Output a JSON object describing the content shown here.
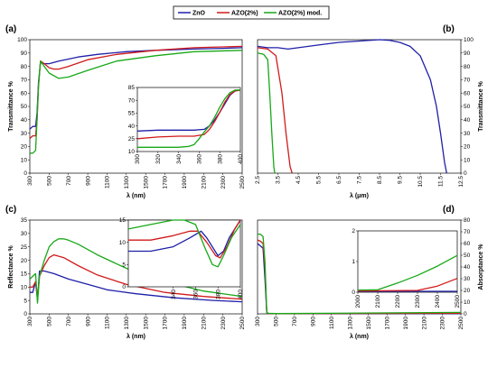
{
  "legend": [
    {
      "name": "ZnO",
      "color": "#1f1fa8"
    },
    {
      "name": "AZO(2%)",
      "color": "#d11a1a"
    },
    {
      "name": "AZO(2%) mod.",
      "color": "#17a817"
    }
  ],
  "chart_data": [
    {
      "panel": "(a)",
      "type": "line",
      "xlabel": "λ (nm)",
      "ylabel": "Transmittance %",
      "xlim": [
        300,
        2500
      ],
      "ylim": [
        0,
        100
      ],
      "xticks": [
        "300",
        "500",
        "700",
        "900",
        "1100",
        "1300",
        "1500",
        "1700",
        "1900",
        "2100",
        "2300",
        "2500"
      ],
      "yticks": [
        "0",
        "10",
        "20",
        "30",
        "40",
        "50",
        "60",
        "70",
        "80",
        "90",
        "100"
      ],
      "series": [
        {
          "name": "ZnO",
          "x": [
            300,
            330,
            360,
            375,
            390,
            410,
            450,
            500,
            600,
            800,
            1000,
            1300,
            1600,
            2000,
            2300,
            2500
          ],
          "y": [
            33,
            35,
            35,
            45,
            68,
            83,
            82,
            82,
            84,
            87,
            89,
            91,
            92,
            93,
            93.5,
            94
          ]
        },
        {
          "name": "AZO(2%)",
          "x": [
            300,
            330,
            360,
            375,
            390,
            410,
            450,
            500,
            550,
            600,
            700,
            900,
            1200,
            1600,
            2000,
            2500
          ],
          "y": [
            26,
            28,
            28,
            40,
            65,
            84,
            82,
            79,
            78,
            78,
            80,
            85,
            89,
            92,
            94,
            95
          ]
        },
        {
          "name": "AZO(2%) mod.",
          "x": [
            300,
            330,
            360,
            375,
            390,
            410,
            450,
            500,
            600,
            700,
            900,
            1200,
            1600,
            2000,
            2500
          ],
          "y": [
            15,
            15,
            17,
            40,
            65,
            84,
            80,
            75,
            71,
            72,
            77,
            84,
            88,
            91,
            92
          ]
        }
      ]
    },
    {
      "panel": "(a) inset",
      "type": "line",
      "xlim": [
        300,
        400
      ],
      "ylim": [
        10,
        85
      ],
      "xticks": [
        "300",
        "320",
        "340",
        "360",
        "380",
        "400"
      ],
      "yticks": [
        "10",
        "25",
        "40",
        "55",
        "70",
        "85"
      ],
      "series": [
        {
          "name": "ZnO",
          "x": [
            300,
            320,
            340,
            355,
            365,
            370,
            375,
            380,
            385,
            390,
            395,
            400
          ],
          "y": [
            34,
            35,
            35,
            35,
            36,
            40,
            47,
            56,
            66,
            76,
            81,
            82
          ]
        },
        {
          "name": "AZO(2%)",
          "x": [
            300,
            320,
            340,
            355,
            365,
            370,
            375,
            380,
            385,
            390,
            395,
            400
          ],
          "y": [
            25,
            27,
            28,
            28,
            30,
            36,
            45,
            56,
            68,
            77,
            81,
            82
          ]
        },
        {
          "name": "AZO(2%) mod.",
          "x": [
            300,
            320,
            340,
            350,
            355,
            360,
            365,
            370,
            375,
            380,
            385,
            390,
            395,
            400
          ],
          "y": [
            15,
            15,
            15,
            16,
            18,
            25,
            33,
            40,
            50,
            62,
            72,
            79,
            82,
            82
          ]
        }
      ]
    },
    {
      "panel": "(b)",
      "type": "line",
      "xlabel": "λ (μm)",
      "ylabel": "Transmittance %",
      "xlim": [
        2.5,
        12.5
      ],
      "ylim": [
        0,
        100
      ],
      "xticks": [
        "2.5",
        "3.5",
        "4.5",
        "5.5",
        "6.5",
        "7.5",
        "8.5",
        "9.5",
        "10.5",
        "11.5",
        "12.5"
      ],
      "yticks": [
        "0",
        "10",
        "20",
        "30",
        "40",
        "50",
        "60",
        "70",
        "80",
        "90",
        "100"
      ],
      "series": [
        {
          "name": "ZnO",
          "x": [
            2.5,
            3.0,
            3.5,
            4.0,
            4.5,
            5.5,
            6.5,
            7.5,
            8.5,
            9.0,
            9.5,
            10.0,
            10.5,
            11.0,
            11.3,
            11.5,
            11.7,
            11.8
          ],
          "y": [
            95,
            94,
            94,
            93,
            94,
            96,
            98,
            99,
            100,
            99.5,
            98,
            95,
            88,
            70,
            50,
            30,
            8,
            0
          ]
        },
        {
          "name": "AZO(2%)",
          "x": [
            2.5,
            3.0,
            3.4,
            3.7,
            3.9,
            4.1,
            4.2
          ],
          "y": [
            94,
            93,
            88,
            60,
            30,
            5,
            0
          ]
        },
        {
          "name": "AZO(2%) mod.",
          "x": [
            2.5,
            2.8,
            3.0,
            3.1,
            3.2,
            3.3,
            3.35
          ],
          "y": [
            90,
            89,
            85,
            60,
            30,
            5,
            0
          ]
        }
      ]
    },
    {
      "panel": "(c)",
      "type": "line",
      "xlabel": "λ (nm)",
      "ylabel": "Reflectance %",
      "xlim": [
        300,
        2500
      ],
      "ylim": [
        0,
        35
      ],
      "xticks": [
        "300",
        "500",
        "700",
        "900",
        "1100",
        "1300",
        "1500",
        "1700",
        "1900",
        "2100",
        "2300",
        "2500"
      ],
      "yticks": [
        "0",
        "5",
        "10",
        "15",
        "20",
        "25",
        "30",
        "35"
      ],
      "series": [
        {
          "name": "ZnO",
          "x": [
            300,
            330,
            360,
            380,
            400,
            450,
            550,
            700,
            900,
            1100,
            1400,
            1800,
            2200,
            2500
          ],
          "y": [
            8,
            8,
            12,
            5,
            16,
            16,
            15,
            13,
            11,
            9,
            7.5,
            6,
            5,
            4.5
          ]
        },
        {
          "name": "AZO(2%)",
          "x": [
            300,
            330,
            360,
            380,
            400,
            450,
            500,
            550,
            650,
            800,
            1000,
            1300,
            1700,
            2100,
            2500
          ],
          "y": [
            10,
            10,
            12,
            6,
            14,
            18,
            21,
            22,
            21,
            18,
            14.5,
            11,
            8,
            6.5,
            5.5
          ]
        },
        {
          "name": "AZO(2%) mod.",
          "x": [
            300,
            330,
            360,
            380,
            400,
            450,
            500,
            550,
            600,
            650,
            700,
            800,
            1000,
            1300,
            1700,
            2100,
            2500
          ],
          "y": [
            13,
            14,
            15,
            4,
            14,
            20,
            25,
            27,
            28,
            28,
            27.5,
            26,
            22,
            17,
            12,
            8.5,
            6.5
          ]
        }
      ]
    },
    {
      "panel": "(c) inset",
      "type": "line",
      "xlim": [
        300,
        400
      ],
      "ylim": [
        0,
        15
      ],
      "xticks": [
        "340",
        "360",
        "380",
        "400"
      ],
      "yticks": [
        "0",
        "5",
        "10",
        "15"
      ],
      "series": [
        {
          "name": "ZnO",
          "x": [
            300,
            320,
            340,
            355,
            365,
            370,
            375,
            380,
            385,
            390,
            400
          ],
          "y": [
            8,
            8,
            9,
            11,
            12.5,
            11,
            9,
            7,
            8,
            11,
            15
          ]
        },
        {
          "name": "AZO(2%)",
          "x": [
            300,
            320,
            340,
            355,
            362,
            370,
            378,
            382,
            388,
            395,
            400
          ],
          "y": [
            10.5,
            10.5,
            11.5,
            12.5,
            12.5,
            10,
            7,
            6.5,
            9,
            13,
            15
          ]
        },
        {
          "name": "AZO(2%) mod.",
          "x": [
            300,
            320,
            340,
            350,
            360,
            368,
            375,
            380,
            385,
            392,
            400
          ],
          "y": [
            13,
            14,
            15,
            15,
            14,
            9,
            5,
            4.5,
            7,
            11,
            14
          ]
        }
      ]
    },
    {
      "panel": "(d)",
      "type": "line",
      "xlabel": "λ (nm)",
      "ylabel": "Absorptance %",
      "xlim": [
        300,
        2500
      ],
      "ylim": [
        0,
        80
      ],
      "xticks": [
        "300",
        "500",
        "700",
        "900",
        "1100",
        "1300",
        "1500",
        "1700",
        "1900",
        "2100",
        "2300",
        "2500"
      ],
      "yticks": [
        "0",
        "10",
        "20",
        "30",
        "40",
        "50",
        "60",
        "70",
        "80"
      ],
      "series": [
        {
          "name": "ZnO",
          "x": [
            300,
            330,
            360,
            380,
            400,
            420,
            500,
            2500
          ],
          "y": [
            60,
            58,
            56,
            30,
            1,
            0.3,
            0.2,
            0.2
          ]
        },
        {
          "name": "AZO(2%)",
          "x": [
            300,
            330,
            360,
            380,
            400,
            420,
            500,
            2500
          ],
          "y": [
            63,
            62,
            60,
            40,
            1,
            0.3,
            0.2,
            0.5
          ]
        },
        {
          "name": "AZO(2%) mod.",
          "x": [
            300,
            330,
            360,
            380,
            400,
            420,
            500,
            2500
          ],
          "y": [
            68,
            68,
            66,
            45,
            1,
            0.5,
            0.2,
            1.2
          ]
        }
      ]
    },
    {
      "panel": "(d) inset",
      "type": "line",
      "xlim": [
        2000,
        2500
      ],
      "ylim": [
        0,
        2
      ],
      "xticks": [
        "2000",
        "2100",
        "2200",
        "2300",
        "2400",
        "2500"
      ],
      "yticks": [
        "0",
        "1",
        "2"
      ],
      "series": [
        {
          "name": "ZnO",
          "x": [
            2000,
            2500
          ],
          "y": [
            0.03,
            0.03
          ]
        },
        {
          "name": "AZO(2%)",
          "x": [
            2000,
            2300,
            2400,
            2500
          ],
          "y": [
            0.04,
            0.06,
            0.2,
            0.45
          ]
        },
        {
          "name": "AZO(2%) mod.",
          "x": [
            2000,
            2100,
            2200,
            2300,
            2400,
            2500
          ],
          "y": [
            0.07,
            0.08,
            0.3,
            0.55,
            0.85,
            1.2
          ]
        }
      ]
    }
  ]
}
